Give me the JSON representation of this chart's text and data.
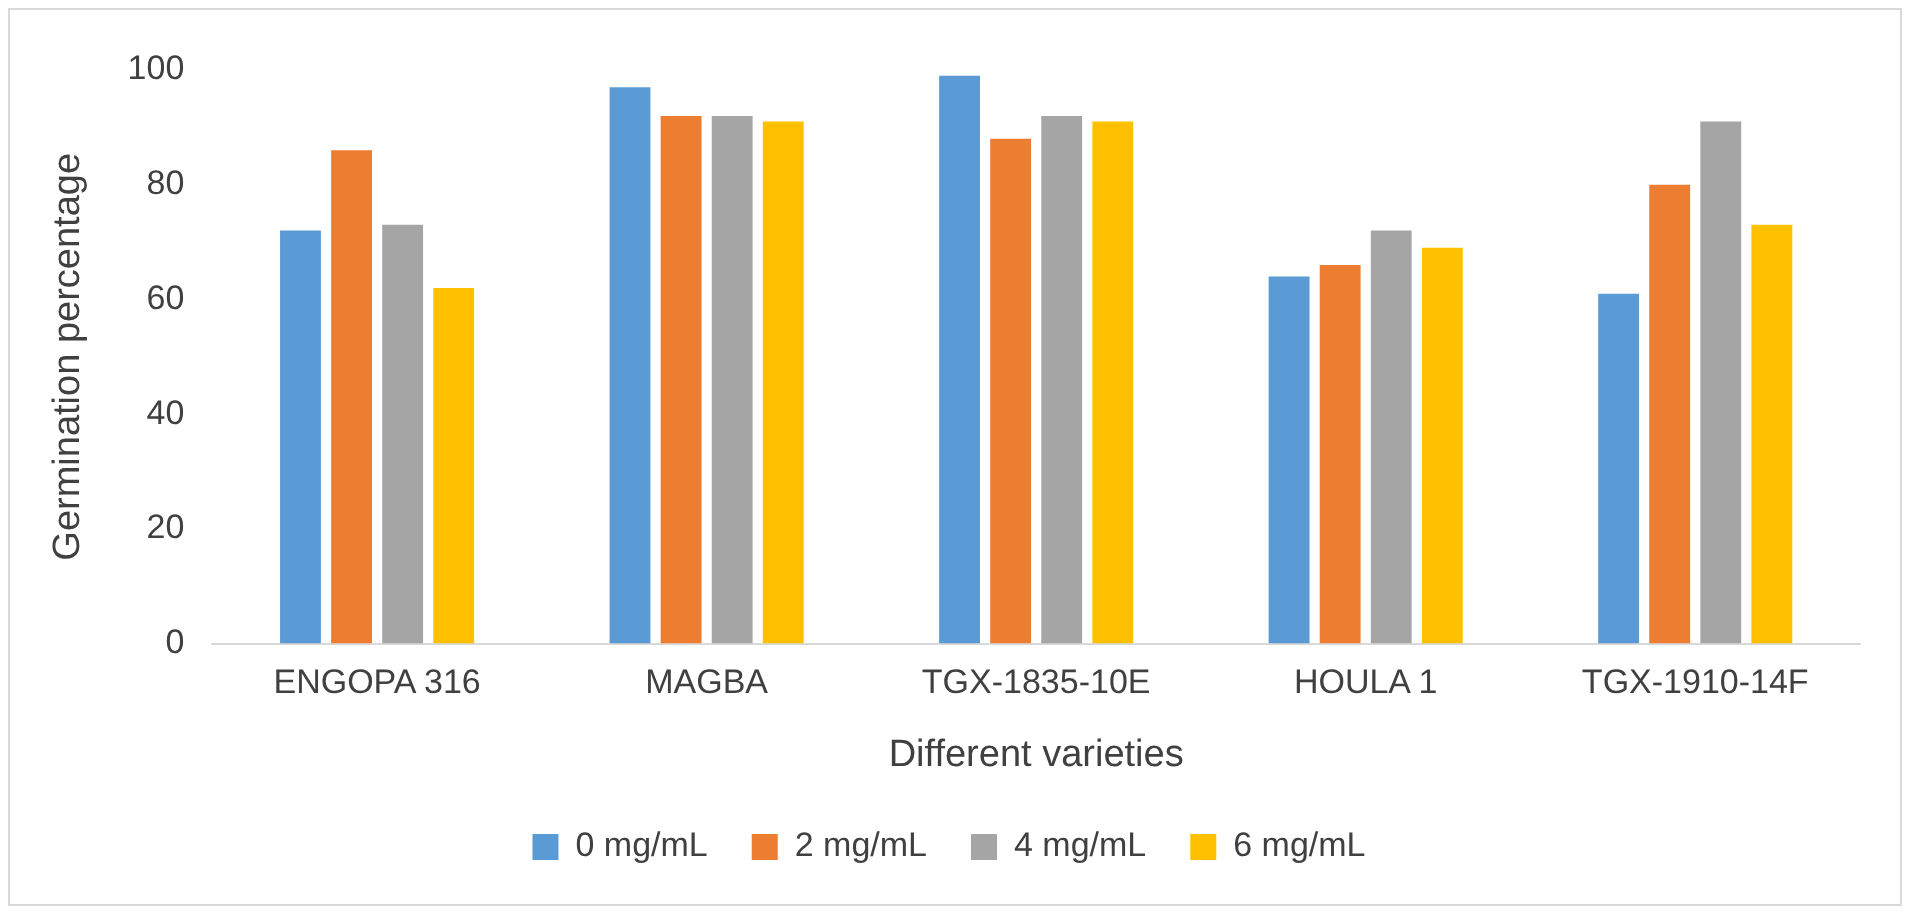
{
  "chart_data": {
    "type": "bar",
    "xlabel": "Different varieties",
    "ylabel": "Germination percentage",
    "categories": [
      "ENGOPA 316",
      "MAGBA",
      "TGX-1835-10E",
      "HOULA 1",
      "TGX-1910-14F"
    ],
    "series": [
      {
        "name": "0 mg/mL",
        "color": "#5b9bd5",
        "values": [
          72,
          97,
          99,
          64,
          61
        ]
      },
      {
        "name": "2 mg/mL",
        "color": "#ed7d31",
        "values": [
          86,
          92,
          88,
          66,
          80
        ]
      },
      {
        "name": "4 mg/mL",
        "color": "#a5a5a5",
        "values": [
          73,
          92,
          92,
          72,
          91
        ]
      },
      {
        "name": "6 mg/mL",
        "color": "#ffc000",
        "values": [
          62,
          91,
          91,
          69,
          73
        ]
      }
    ],
    "ylim": [
      0,
      100
    ],
    "yticks": [
      0,
      20,
      40,
      60,
      80,
      100
    ],
    "grid": false,
    "legend": "bottom"
  }
}
